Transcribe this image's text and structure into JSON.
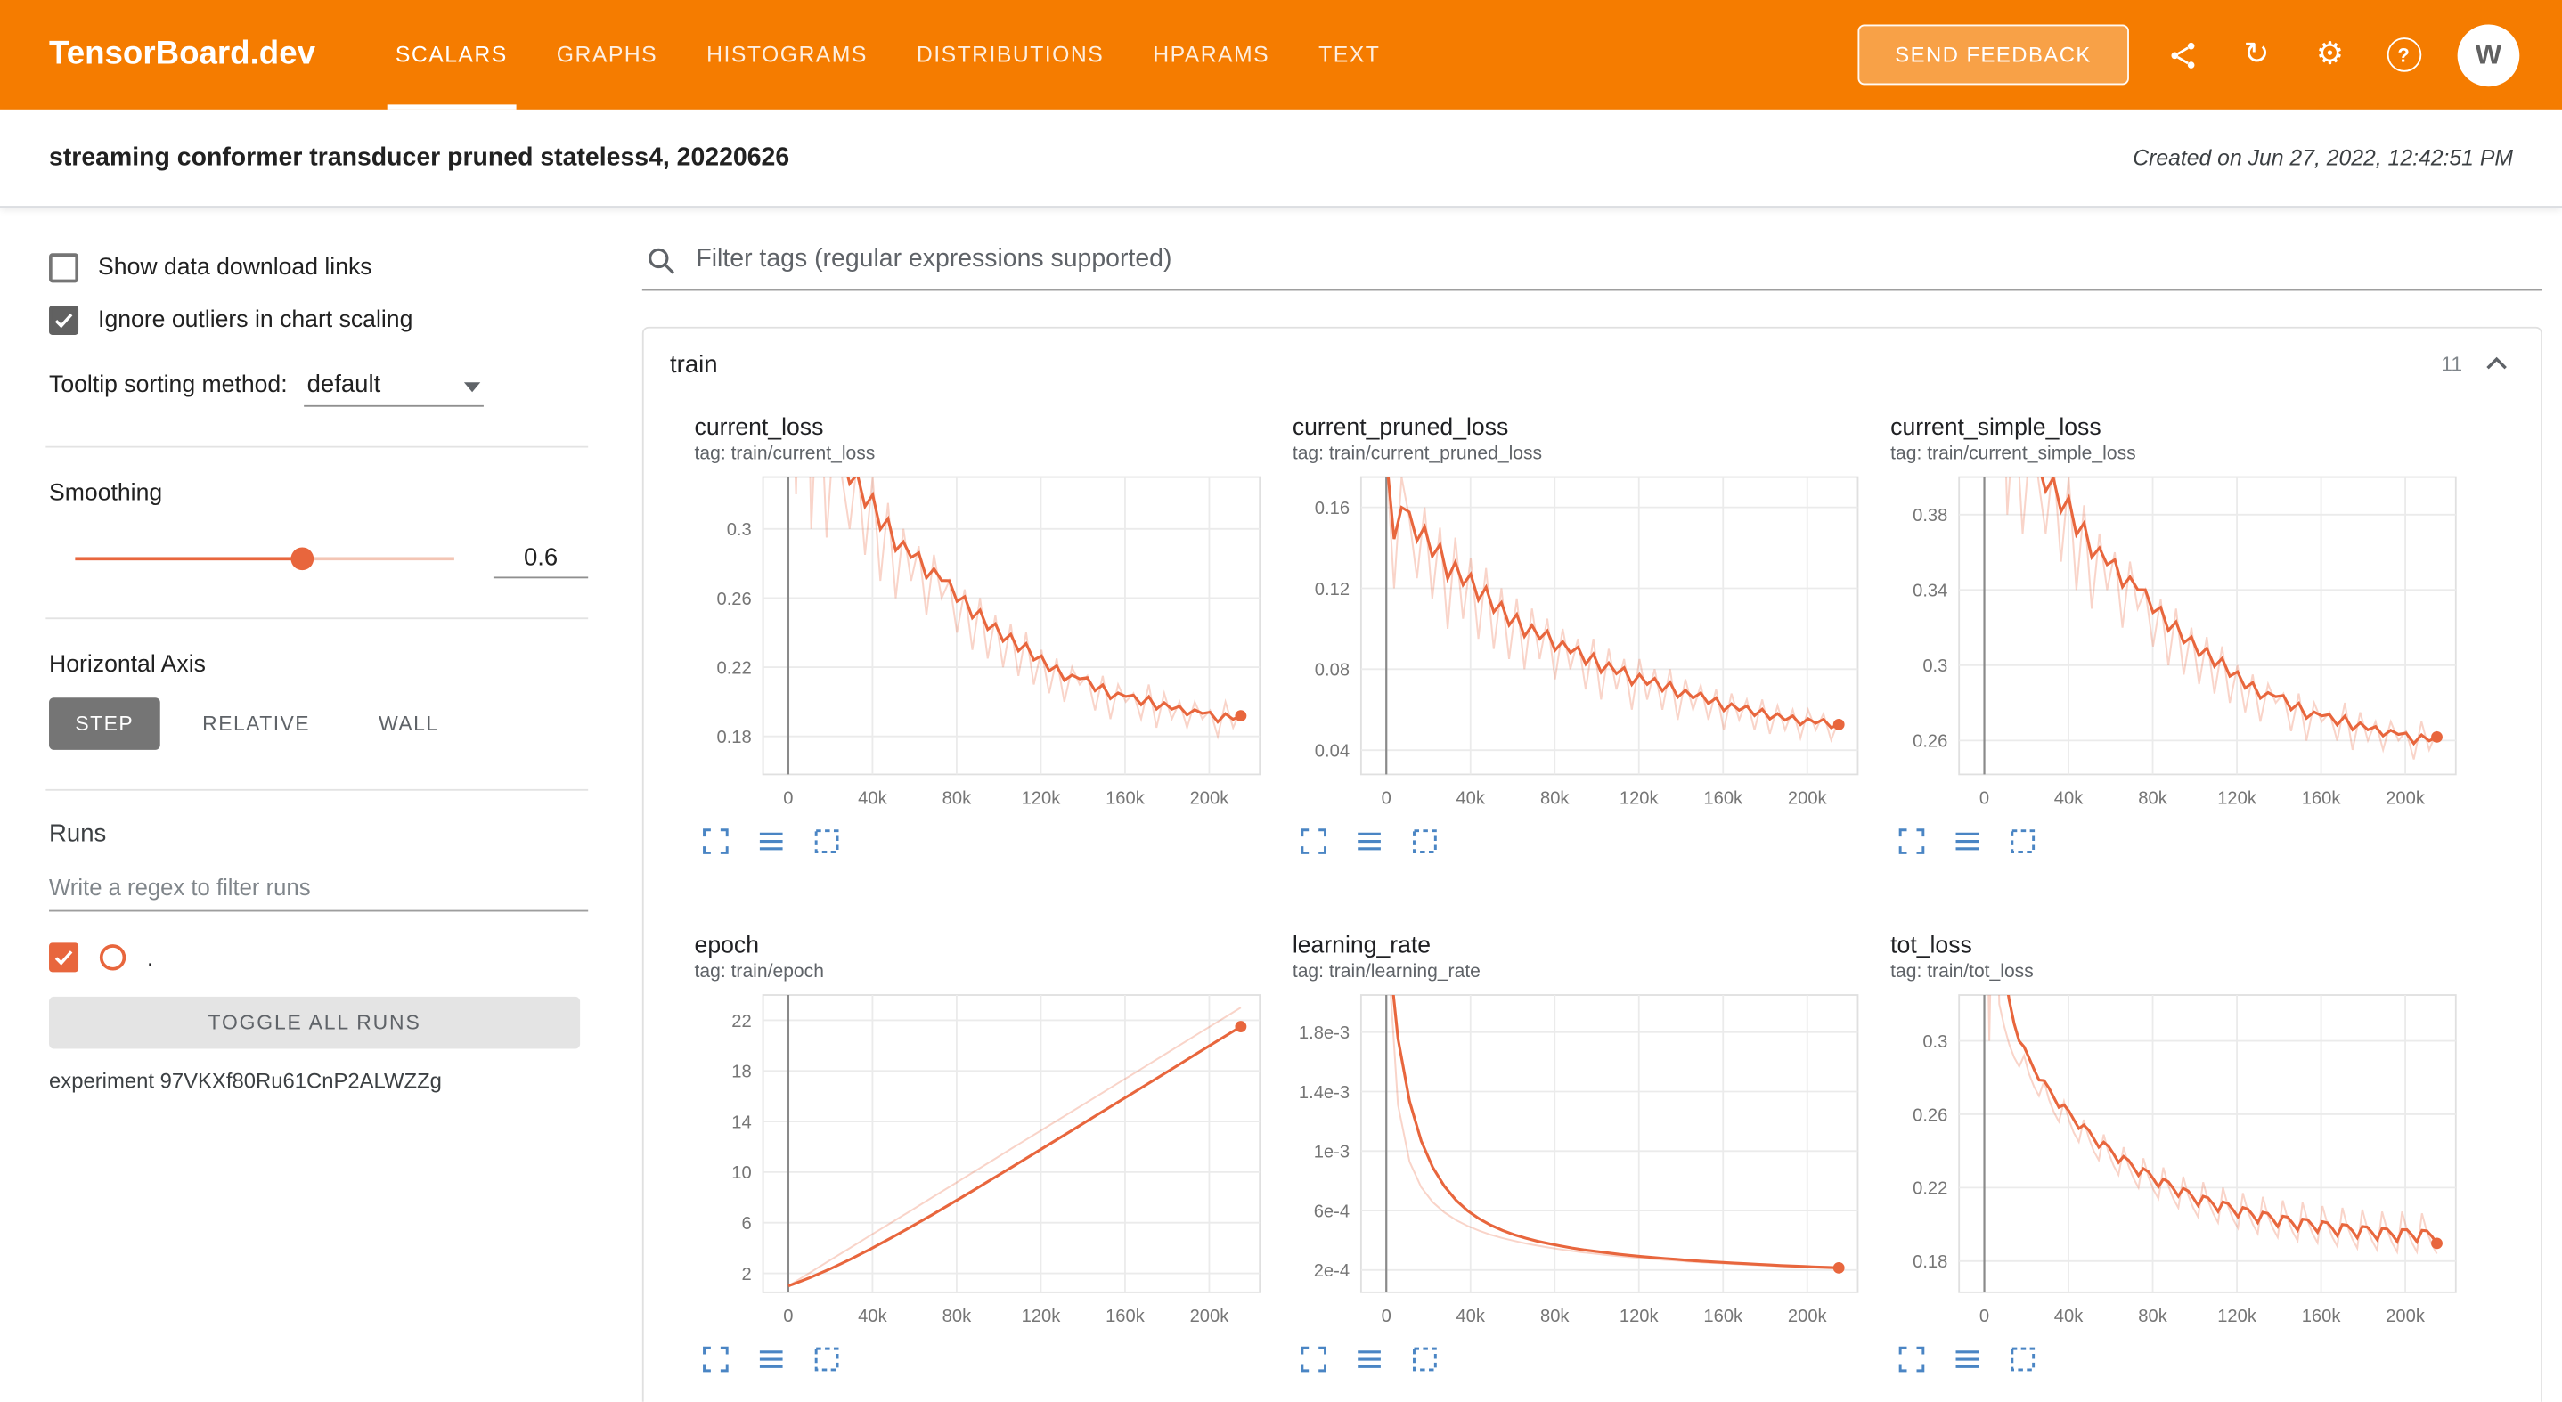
{
  "colors": {
    "header_bg": "#f57c00",
    "accent": "#e8663d",
    "icon_blue": "#4a85c4",
    "checkbox_dark": "#616161"
  },
  "header": {
    "brand": "TensorBoard.dev",
    "tabs": [
      {
        "label": "SCALARS"
      },
      {
        "label": "GRAPHS"
      },
      {
        "label": "HISTOGRAMS"
      },
      {
        "label": "DISTRIBUTIONS"
      },
      {
        "label": "HPARAMS"
      },
      {
        "label": "TEXT"
      }
    ],
    "active_tab": "SCALARS",
    "feedback": "SEND FEEDBACK",
    "avatar": "W"
  },
  "icons": {
    "share": {
      "name": "share-icon",
      "shape": "svg-share"
    },
    "refresh": {
      "name": "refresh-icon",
      "glyph": "↻"
    },
    "settings": {
      "name": "settings-icon",
      "glyph": "⚙"
    },
    "help": {
      "name": "help-icon",
      "glyph": "?"
    },
    "search": {
      "name": "search-icon",
      "shape": "svg-magnifier"
    },
    "collapse": {
      "name": "chevron-up-icon",
      "shape": "svg-chevron-up"
    }
  },
  "subheader": {
    "title": "streaming conformer transducer pruned stateless4, 20220626",
    "created": "Created on Jun 27, 2022, 12:42:51 PM"
  },
  "sidebar": {
    "show_download": {
      "label": "Show data download links",
      "checked": false
    },
    "ignore_outliers": {
      "label": "Ignore outliers in chart scaling",
      "checked": true
    },
    "tooltip_sort": {
      "label": "Tooltip sorting method:",
      "value": "default"
    },
    "smoothing": {
      "label": "Smoothing",
      "value": "0.6"
    },
    "horizontal_axis": {
      "label": "Horizontal Axis",
      "options": [
        "STEP",
        "RELATIVE",
        "WALL"
      ],
      "selected": "STEP"
    },
    "runs": {
      "label": "Runs",
      "filter_placeholder": "Write a regex to filter runs",
      "run_name": ".",
      "run_checked": true,
      "toggle_all": "TOGGLE ALL RUNS",
      "experiment": "experiment 97VKXf80Ru61CnP2ALWZZg"
    }
  },
  "main": {
    "filter_placeholder": "Filter tags (regular expressions supported)",
    "group": {
      "title": "train",
      "count": "11"
    }
  },
  "chart_data": [
    {
      "type": "line",
      "title": "current_loss",
      "tag": "tag: train/current_loss",
      "xlabel": "step",
      "ylabel": "",
      "x_max": 215000,
      "xlim": [
        -12000,
        224000
      ],
      "xticks": [
        0,
        40000,
        80000,
        120000,
        160000,
        200000
      ],
      "xtick_labels": [
        "0",
        "40k",
        "80k",
        "120k",
        "160k",
        "200k"
      ],
      "ylim": [
        0.158,
        0.33
      ],
      "yticks": [
        0.18,
        0.22,
        0.26,
        0.3
      ],
      "ytick_labels": [
        "0.18",
        "0.22",
        "0.26",
        "0.3"
      ],
      "values": [
        0.46,
        0.32,
        0.52,
        0.3,
        0.4,
        0.295,
        0.36,
        0.33,
        0.3,
        0.34,
        0.285,
        0.33,
        0.27,
        0.315,
        0.26,
        0.3,
        0.27,
        0.29,
        0.25,
        0.285,
        0.26,
        0.27,
        0.24,
        0.265,
        0.23,
        0.26,
        0.225,
        0.25,
        0.22,
        0.245,
        0.215,
        0.24,
        0.21,
        0.23,
        0.205,
        0.225,
        0.2,
        0.22,
        0.21,
        0.215,
        0.195,
        0.215,
        0.19,
        0.21,
        0.2,
        0.205,
        0.19,
        0.21,
        0.185,
        0.205,
        0.19,
        0.2,
        0.185,
        0.2,
        0.19,
        0.195,
        0.18,
        0.2,
        0.185,
        0.195
      ]
    },
    {
      "type": "line",
      "title": "current_pruned_loss",
      "tag": "tag: train/current_pruned_loss",
      "xlabel": "step",
      "ylabel": "",
      "x_max": 215000,
      "xlim": [
        -12000,
        224000
      ],
      "xticks": [
        0,
        40000,
        80000,
        120000,
        160000,
        200000
      ],
      "xtick_labels": [
        "0",
        "40k",
        "80k",
        "120k",
        "160k",
        "200k"
      ],
      "ylim": [
        0.028,
        0.175
      ],
      "yticks": [
        0.04,
        0.08,
        0.12,
        0.16
      ],
      "ytick_labels": [
        "0.04",
        "0.08",
        "0.12",
        "0.16"
      ],
      "values": [
        0.185,
        0.12,
        0.175,
        0.155,
        0.125,
        0.16,
        0.115,
        0.15,
        0.1,
        0.145,
        0.105,
        0.135,
        0.095,
        0.13,
        0.09,
        0.12,
        0.085,
        0.115,
        0.08,
        0.11,
        0.085,
        0.105,
        0.075,
        0.1,
        0.08,
        0.095,
        0.07,
        0.095,
        0.065,
        0.09,
        0.07,
        0.085,
        0.06,
        0.085,
        0.065,
        0.08,
        0.06,
        0.08,
        0.055,
        0.075,
        0.06,
        0.072,
        0.055,
        0.07,
        0.05,
        0.068,
        0.055,
        0.065,
        0.05,
        0.065,
        0.048,
        0.062,
        0.05,
        0.06,
        0.046,
        0.06,
        0.05,
        0.058,
        0.045,
        0.055
      ]
    },
    {
      "type": "line",
      "title": "current_simple_loss",
      "tag": "tag: train/current_simple_loss",
      "xlabel": "step",
      "ylabel": "",
      "x_max": 215000,
      "xlim": [
        -12000,
        224000
      ],
      "xticks": [
        0,
        40000,
        80000,
        120000,
        160000,
        200000
      ],
      "xtick_labels": [
        "0",
        "40k",
        "80k",
        "120k",
        "160k",
        "200k"
      ],
      "ylim": [
        0.242,
        0.4
      ],
      "yticks": [
        0.26,
        0.3,
        0.34,
        0.38
      ],
      "ytick_labels": [
        "0.26",
        "0.3",
        "0.34",
        "0.38"
      ],
      "values": [
        0.5,
        0.4,
        0.52,
        0.38,
        0.44,
        0.37,
        0.42,
        0.4,
        0.37,
        0.41,
        0.355,
        0.4,
        0.34,
        0.385,
        0.33,
        0.37,
        0.34,
        0.36,
        0.32,
        0.355,
        0.33,
        0.34,
        0.31,
        0.335,
        0.3,
        0.33,
        0.295,
        0.32,
        0.29,
        0.315,
        0.285,
        0.31,
        0.28,
        0.3,
        0.275,
        0.295,
        0.27,
        0.29,
        0.28,
        0.285,
        0.265,
        0.285,
        0.26,
        0.28,
        0.27,
        0.275,
        0.26,
        0.28,
        0.255,
        0.275,
        0.26,
        0.27,
        0.255,
        0.27,
        0.26,
        0.265,
        0.25,
        0.27,
        0.255,
        0.265
      ]
    },
    {
      "type": "line",
      "title": "epoch",
      "tag": "tag: train/epoch",
      "xlabel": "step",
      "ylabel": "",
      "x_max": 215000,
      "xlim": [
        -12000,
        224000
      ],
      "xticks": [
        0,
        40000,
        80000,
        120000,
        160000,
        200000
      ],
      "xtick_labels": [
        "0",
        "40k",
        "80k",
        "120k",
        "160k",
        "200k"
      ],
      "ylim": [
        0.5,
        24
      ],
      "yticks": [
        2,
        6,
        10,
        14,
        18,
        22
      ],
      "ytick_labels": [
        "2",
        "6",
        "10",
        "14",
        "18",
        "22"
      ],
      "values": [
        1,
        2,
        3,
        4,
        5,
        6,
        7,
        8,
        9,
        10,
        11,
        12,
        13,
        14,
        15,
        16,
        17,
        18,
        19,
        20,
        21,
        22,
        23
      ]
    },
    {
      "type": "line",
      "title": "learning_rate",
      "tag": "tag: train/learning_rate",
      "xlabel": "step",
      "ylabel": "",
      "x_max": 215000,
      "xlim": [
        -12000,
        224000
      ],
      "xticks": [
        0,
        40000,
        80000,
        120000,
        160000,
        200000
      ],
      "xtick_labels": [
        "0",
        "40k",
        "80k",
        "120k",
        "160k",
        "200k"
      ],
      "ylim": [
        5e-05,
        0.00205
      ],
      "yticks": [
        0.0002,
        0.0006,
        0.001,
        0.0014,
        0.0018
      ],
      "ytick_labels": [
        "2e-4",
        "6e-4",
        "1e-3",
        "1.4e-3",
        "1.8e-3"
      ],
      "values": [
        0.0025,
        0.00131,
        0.000928,
        0.000757,
        0.000656,
        0.000587,
        0.000536,
        0.000496,
        0.000464,
        0.000437,
        0.000415,
        0.000396,
        0.000379,
        0.000364,
        0.000351,
        0.000339,
        0.000328,
        0.000318,
        0.000309,
        0.000301,
        0.000293,
        0.000286,
        0.00028,
        0.000274,
        0.000268,
        0.000263,
        0.000257,
        0.000252,
        0.000248,
        0.000244,
        0.00024,
        0.000236,
        0.000232,
        0.000229,
        0.000225,
        0.000222,
        0.000219,
        0.000216,
        0.000213,
        0.00021
      ]
    },
    {
      "type": "line",
      "title": "tot_loss",
      "tag": "tag: train/tot_loss",
      "xlabel": "step",
      "ylabel": "",
      "x_max": 215000,
      "xlim": [
        -12000,
        224000
      ],
      "xticks": [
        0,
        40000,
        80000,
        120000,
        160000,
        200000
      ],
      "xtick_labels": [
        "0",
        "40k",
        "80k",
        "120k",
        "160k",
        "200k"
      ],
      "ylim": [
        0.163,
        0.325
      ],
      "yticks": [
        0.18,
        0.22,
        0.26,
        0.3
      ],
      "ytick_labels": [
        "0.18",
        "0.22",
        "0.26",
        "0.3"
      ],
      "values": [
        0.46,
        0.3,
        0.44,
        0.32,
        0.308,
        0.298,
        0.291,
        0.286,
        0.292,
        0.282,
        0.275,
        0.27,
        0.278,
        0.268,
        0.261,
        0.256,
        0.267,
        0.257,
        0.25,
        0.245,
        0.257,
        0.247,
        0.24,
        0.235,
        0.249,
        0.239,
        0.232,
        0.227,
        0.242,
        0.232,
        0.225,
        0.22,
        0.236,
        0.226,
        0.219,
        0.214,
        0.231,
        0.221,
        0.214,
        0.209,
        0.226,
        0.216,
        0.209,
        0.204,
        0.223,
        0.213,
        0.206,
        0.201,
        0.22,
        0.21,
        0.203,
        0.198,
        0.217,
        0.207,
        0.2,
        0.195,
        0.215,
        0.205,
        0.198,
        0.193,
        0.213,
        0.203,
        0.196,
        0.191,
        0.212,
        0.202,
        0.195,
        0.19,
        0.21,
        0.2,
        0.193,
        0.188,
        0.209,
        0.199,
        0.192,
        0.187,
        0.208,
        0.198,
        0.191,
        0.186,
        0.207,
        0.197,
        0.19,
        0.185,
        0.207,
        0.197,
        0.19,
        0.185,
        0.206,
        0.196,
        0.189,
        0.184
      ]
    }
  ]
}
